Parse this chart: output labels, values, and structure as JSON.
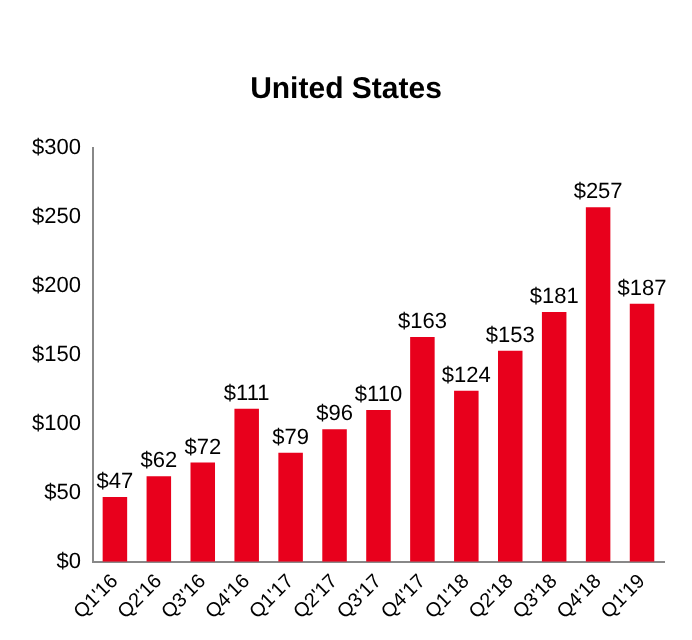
{
  "chart_data": {
    "type": "bar",
    "title": "United States",
    "categories": [
      "Q1'16",
      "Q2'16",
      "Q3'16",
      "Q4'16",
      "Q1'17",
      "Q2'17",
      "Q3'17",
      "Q4'17",
      "Q1'18",
      "Q2'18",
      "Q3'18",
      "Q4'18",
      "Q1'19"
    ],
    "values": [
      47,
      62,
      72,
      111,
      79,
      96,
      110,
      163,
      124,
      153,
      181,
      257,
      187
    ],
    "value_labels": [
      "$47",
      "$62",
      "$72",
      "$111",
      "$79",
      "$96",
      "$110",
      "$163",
      "$124",
      "$153",
      "$181",
      "$257",
      "$187"
    ],
    "color": "#e8001c",
    "ylim": [
      0,
      300
    ],
    "yticks": [
      {
        "value": 0,
        "label": "$0"
      },
      {
        "value": 50,
        "label": "$50"
      },
      {
        "value": 100,
        "label": "$100"
      },
      {
        "value": 150,
        "label": "$150"
      },
      {
        "value": 200,
        "label": "$200"
      },
      {
        "value": 250,
        "label": "$250"
      },
      {
        "value": 300,
        "label": "$300"
      }
    ],
    "grid": false,
    "legend": false
  }
}
